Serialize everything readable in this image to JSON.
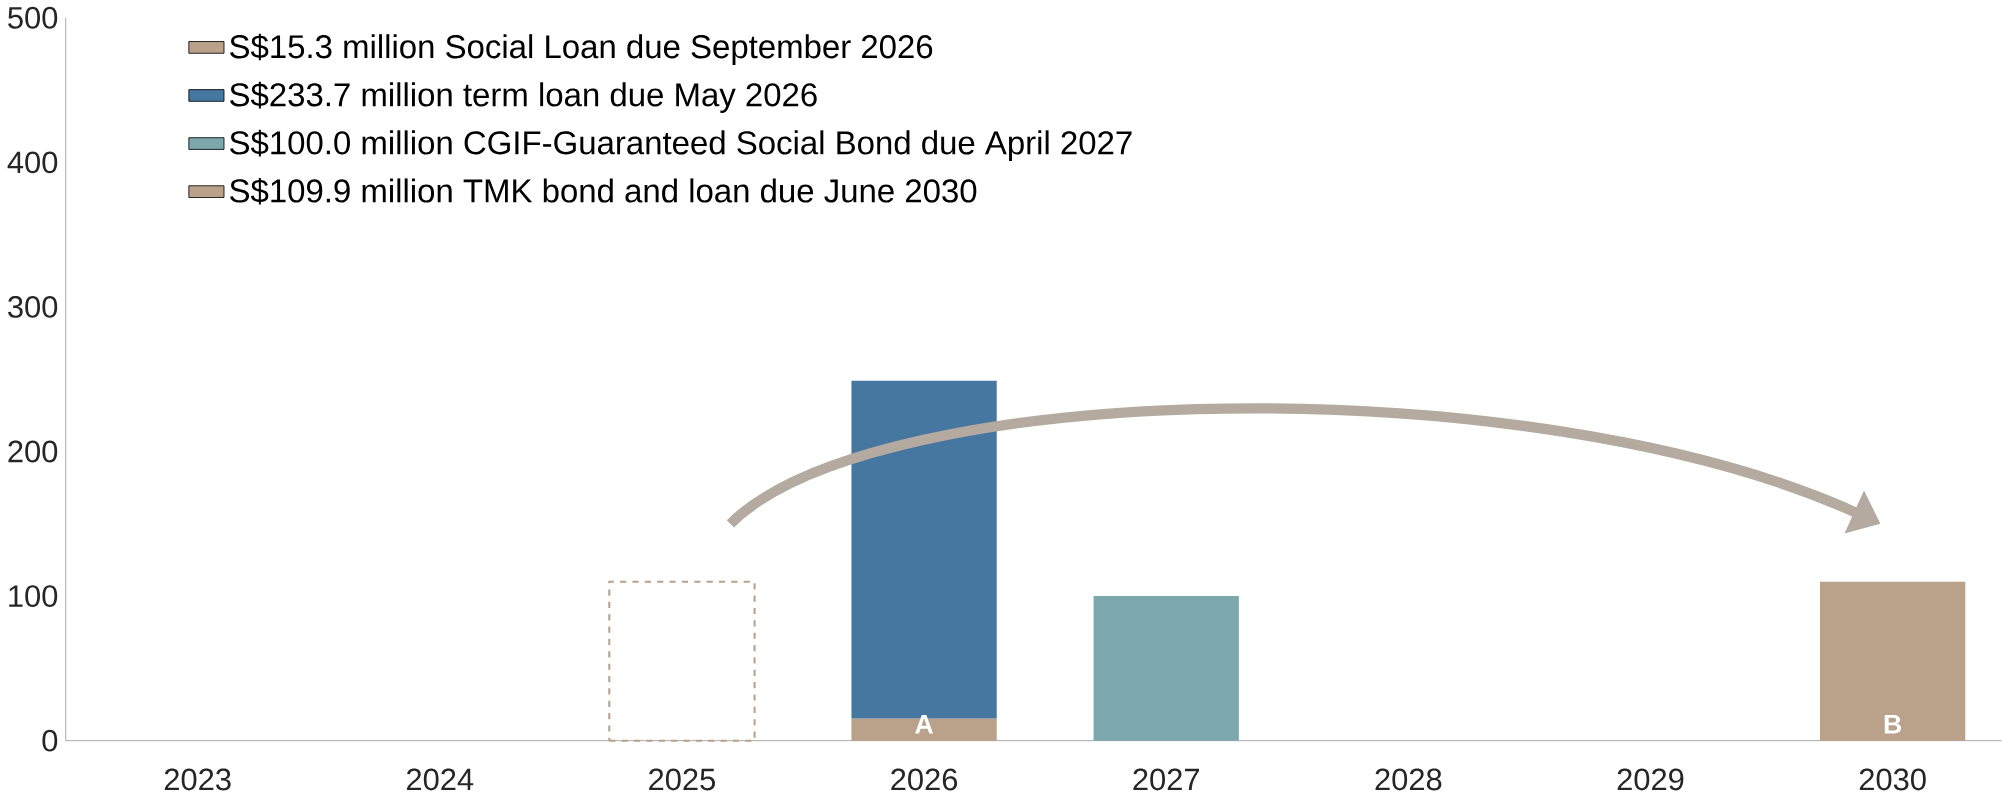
{
  "chart_data": {
    "type": "bar",
    "stacked": true,
    "categories": [
      "2023",
      "2024",
      "2025",
      "2026",
      "2027",
      "2028",
      "2029",
      "2030"
    ],
    "series": [
      {
        "name": "S$15.3 million Social Loan due September 2026",
        "color": "#b9a18a",
        "values": [
          null,
          null,
          null,
          15.3,
          null,
          null,
          null,
          null
        ]
      },
      {
        "name": "S$233.7 million term loan due May 2026",
        "color": "#4677a0",
        "values": [
          null,
          null,
          null,
          233.7,
          null,
          null,
          null,
          null
        ]
      },
      {
        "name": "S$100.0 million CGIF-Guaranteed Social Bond due April 2027",
        "color": "#7ba7ad",
        "values": [
          null,
          null,
          null,
          null,
          100.0,
          null,
          null,
          null
        ]
      },
      {
        "name": "S$109.9 million TMK bond and loan due June 2030",
        "color": "#b9a18a",
        "values": [
          null,
          null,
          null,
          null,
          null,
          null,
          null,
          109.9
        ]
      },
      {
        "color": "#b9a18a",
        "line_style": "dashed",
        "values": [
          null,
          null,
          109.9,
          null,
          null,
          null,
          null,
          null
        ]
      }
    ],
    "ylim": [
      0,
      500
    ],
    "yticks": [
      0,
      100,
      200,
      300,
      400,
      500
    ],
    "grid": false,
    "legend": "top left",
    "annotations": [
      "A",
      "B"
    ]
  }
}
